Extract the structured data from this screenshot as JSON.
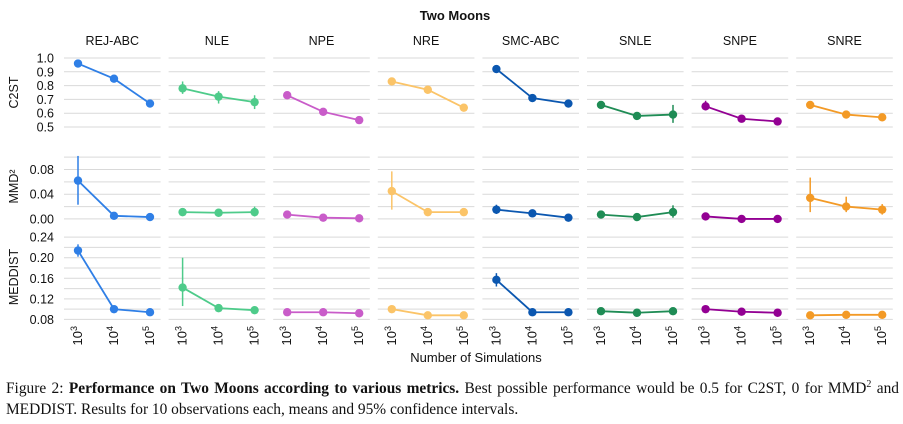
{
  "chart_data": {
    "type": "line",
    "title": "Two Moons",
    "xlabel": "Number of Simulations",
    "x": [
      1000,
      10000,
      100000
    ],
    "x_tick_labels": [
      {
        "base": "10",
        "exp": "3"
      },
      {
        "base": "10",
        "exp": "4"
      },
      {
        "base": "10",
        "exp": "5"
      }
    ],
    "x_scale": "log",
    "grid": true,
    "algorithms": [
      {
        "name": "REJ-ABC",
        "color": "#2f7fe6"
      },
      {
        "name": "NLE",
        "color": "#4ecb8a"
      },
      {
        "name": "NPE",
        "color": "#c95cc9"
      },
      {
        "name": "NRE",
        "color": "#fbc468"
      },
      {
        "name": "SMC-ABC",
        "color": "#0b57b0"
      },
      {
        "name": "SNLE",
        "color": "#1f8c55"
      },
      {
        "name": "SNPE",
        "color": "#930093"
      },
      {
        "name": "SNRE",
        "color": "#f39a26"
      }
    ],
    "metrics": [
      {
        "name": "C2ST",
        "ylim": [
          0.5,
          1.0
        ],
        "yticks": [
          "1.0",
          "0.9",
          "0.8",
          "0.7",
          "0.6",
          "0.5"
        ],
        "ytick_values": [
          1.0,
          0.9,
          0.8,
          0.7,
          0.6,
          0.5
        ],
        "series": [
          {
            "name": "REJ-ABC",
            "values": [
              0.96,
              0.85,
              0.67
            ],
            "ci": [
              [
                0.96,
                0.96
              ],
              [
                0.85,
                0.85
              ],
              [
                0.67,
                0.67
              ]
            ]
          },
          {
            "name": "NLE",
            "values": [
              0.78,
              0.72,
              0.68
            ],
            "ci": [
              [
                0.74,
                0.83
              ],
              [
                0.67,
                0.76
              ],
              [
                0.63,
                0.73
              ]
            ]
          },
          {
            "name": "NPE",
            "values": [
              0.73,
              0.61,
              0.55
            ],
            "ci": [
              [
                0.72,
                0.74
              ],
              [
                0.6,
                0.62
              ],
              [
                0.54,
                0.56
              ]
            ]
          },
          {
            "name": "NRE",
            "values": [
              0.83,
              0.77,
              0.64
            ],
            "ci": [
              [
                0.82,
                0.84
              ],
              [
                0.76,
                0.78
              ],
              [
                0.63,
                0.65
              ]
            ]
          },
          {
            "name": "SMC-ABC",
            "values": [
              0.92,
              0.71,
              0.67
            ],
            "ci": [
              [
                0.92,
                0.92
              ],
              [
                0.71,
                0.71
              ],
              [
                0.67,
                0.67
              ]
            ]
          },
          {
            "name": "SNLE",
            "values": [
              0.66,
              0.58,
              0.59
            ],
            "ci": [
              [
                0.65,
                0.67
              ],
              [
                0.57,
                0.59
              ],
              [
                0.53,
                0.66
              ]
            ]
          },
          {
            "name": "SNPE",
            "values": [
              0.65,
              0.56,
              0.54
            ],
            "ci": [
              [
                0.62,
                0.69
              ],
              [
                0.55,
                0.57
              ],
              [
                0.53,
                0.55
              ]
            ]
          },
          {
            "name": "SNRE",
            "values": [
              0.66,
              0.59,
              0.57
            ],
            "ci": [
              [
                0.65,
                0.67
              ],
              [
                0.58,
                0.6
              ],
              [
                0.56,
                0.58
              ]
            ]
          }
        ]
      },
      {
        "name": "MMD²",
        "ylim": [
          -0.005,
          0.11
        ],
        "yticks": [
          "0.08",
          "0.04",
          "0.00"
        ],
        "ytick_values": [
          0.08,
          0.04,
          0.0
        ],
        "gridlines": [
          0.1,
          0.08,
          0.06,
          0.04,
          0.02,
          0.0
        ],
        "series": [
          {
            "name": "REJ-ABC",
            "values": [
              0.062,
              0.005,
              0.003
            ],
            "ci": [
              [
                0.023,
                0.102
              ],
              [
                0.005,
                0.005
              ],
              [
                0.003,
                0.003
              ]
            ]
          },
          {
            "name": "NLE",
            "values": [
              0.011,
              0.01,
              0.011
            ],
            "ci": [
              [
                0.006,
                0.015
              ],
              [
                0.008,
                0.012
              ],
              [
                0.004,
                0.02
              ]
            ]
          },
          {
            "name": "NPE",
            "values": [
              0.007,
              0.002,
              0.001
            ],
            "ci": [
              [
                0.006,
                0.008
              ],
              [
                0.001,
                0.003
              ],
              [
                0.0,
                0.002
              ]
            ]
          },
          {
            "name": "NRE",
            "values": [
              0.045,
              0.011,
              0.011
            ],
            "ci": [
              [
                0.015,
                0.077
              ],
              [
                0.009,
                0.013
              ],
              [
                0.008,
                0.014
              ]
            ]
          },
          {
            "name": "SMC-ABC",
            "values": [
              0.015,
              0.009,
              0.002
            ],
            "ci": [
              [
                0.008,
                0.023
              ],
              [
                0.008,
                0.01
              ],
              [
                0.001,
                0.003
              ]
            ]
          },
          {
            "name": "SNLE",
            "values": [
              0.007,
              0.003,
              0.011
            ],
            "ci": [
              [
                0.005,
                0.009
              ],
              [
                0.002,
                0.004
              ],
              [
                0.002,
                0.022
              ]
            ]
          },
          {
            "name": "SNPE",
            "values": [
              0.004,
              0.0,
              0.0
            ],
            "ci": [
              [
                0.003,
                0.005
              ],
              [
                0.0,
                0.001
              ],
              [
                -0.001,
                0.001
              ]
            ]
          },
          {
            "name": "SNRE",
            "values": [
              0.034,
              0.02,
              0.015
            ],
            "ci": [
              [
                0.011,
                0.067
              ],
              [
                0.011,
                0.036
              ],
              [
                0.007,
                0.024
              ]
            ]
          }
        ]
      },
      {
        "name": "MEDDIST",
        "ylim": [
          0.075,
          0.25
        ],
        "yticks": [
          "0.24",
          "0.20",
          "0.16",
          "0.12",
          "0.08"
        ],
        "ytick_values": [
          0.24,
          0.2,
          0.16,
          0.12,
          0.08
        ],
        "gridlines": [
          0.24,
          0.22,
          0.2,
          0.18,
          0.16,
          0.14,
          0.12,
          0.1,
          0.08
        ],
        "series": [
          {
            "name": "REJ-ABC",
            "values": [
              0.214,
              0.1,
              0.094
            ],
            "ci": [
              [
                0.202,
                0.226
              ],
              [
                0.1,
                0.1
              ],
              [
                0.094,
                0.094
              ]
            ]
          },
          {
            "name": "NLE",
            "values": [
              0.142,
              0.102,
              0.098
            ],
            "ci": [
              [
                0.106,
                0.2
              ],
              [
                0.1,
                0.104
              ],
              [
                0.094,
                0.102
              ]
            ]
          },
          {
            "name": "NPE",
            "values": [
              0.094,
              0.094,
              0.092
            ],
            "ci": [
              [
                0.093,
                0.095
              ],
              [
                0.093,
                0.095
              ],
              [
                0.091,
                0.093
              ]
            ]
          },
          {
            "name": "NRE",
            "values": [
              0.1,
              0.088,
              0.088
            ],
            "ci": [
              [
                0.098,
                0.102
              ],
              [
                0.087,
                0.089
              ],
              [
                0.087,
                0.089
              ]
            ]
          },
          {
            "name": "SMC-ABC",
            "values": [
              0.157,
              0.094,
              0.094
            ],
            "ci": [
              [
                0.144,
                0.17
              ],
              [
                0.094,
                0.094
              ],
              [
                0.094,
                0.094
              ]
            ]
          },
          {
            "name": "SNLE",
            "values": [
              0.096,
              0.093,
              0.096
            ],
            "ci": [
              [
                0.095,
                0.097
              ],
              [
                0.092,
                0.094
              ],
              [
                0.093,
                0.1
              ]
            ]
          },
          {
            "name": "SNPE",
            "values": [
              0.1,
              0.095,
              0.093
            ],
            "ci": [
              [
                0.099,
                0.101
              ],
              [
                0.094,
                0.096
              ],
              [
                0.092,
                0.094
              ]
            ]
          },
          {
            "name": "SNRE",
            "values": [
              0.088,
              0.089,
              0.089
            ],
            "ci": [
              [
                0.087,
                0.089
              ],
              [
                0.088,
                0.09
              ],
              [
                0.088,
                0.09
              ]
            ]
          }
        ]
      }
    ]
  },
  "caption": {
    "label": "Figure 2:",
    "bold": "Performance on Two Moons according to various metrics.",
    "text_1": "Best possible performance would be 0.5 for C2ST, 0 for MMD",
    "sup": "2",
    "text_2": "and MEDDIST. Results for 10 observations each, means and 95% confidence intervals."
  }
}
